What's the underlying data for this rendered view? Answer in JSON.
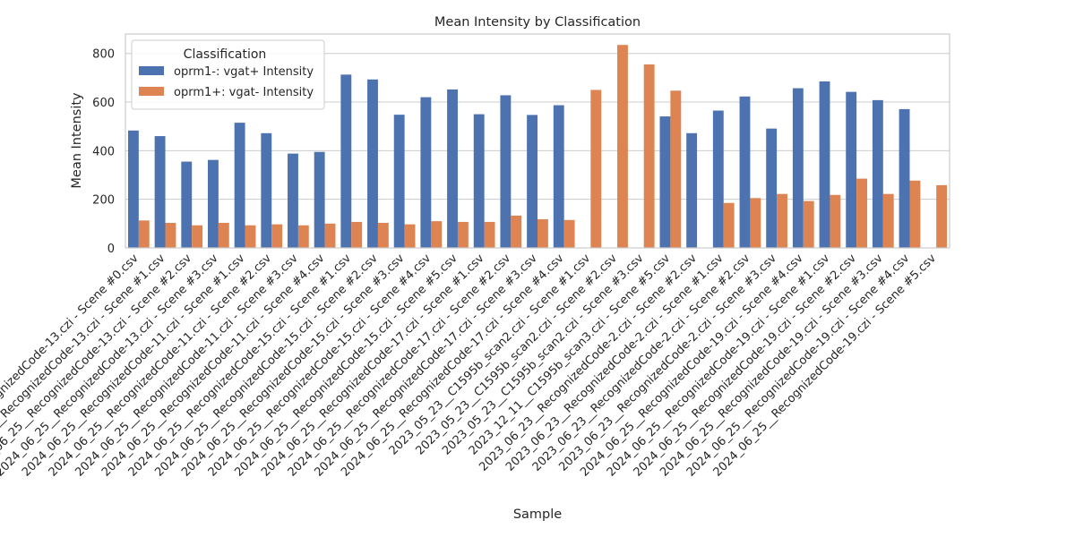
{
  "chart_data": {
    "type": "bar",
    "title": "Mean Intensity by Classification",
    "xlabel": "Sample",
    "ylabel": "Mean Intensity",
    "ylim": [
      0,
      880
    ],
    "yticks": [
      0,
      200,
      400,
      600,
      800
    ],
    "grid": true,
    "legend_title": "Classification",
    "legend_position": "top-left",
    "categories": [
      "2024_06_25__RecognizedCode-13.czi - Scene #0.csv",
      "2024_06_25__RecognizedCode-13.czi - Scene #1.csv",
      "2024_06_25__RecognizedCode-13.czi - Scene #2.csv",
      "2024_06_25__RecognizedCode-13.czi - Scene #3.csv",
      "2024_06_25__RecognizedCode-11.czi - Scene #1.csv",
      "2024_06_25__RecognizedCode-11.czi - Scene #2.csv",
      "2024_06_25__RecognizedCode-11.czi - Scene #3.csv",
      "2024_06_25__RecognizedCode-11.czi - Scene #4.csv",
      "2024_06_25__RecognizedCode-15.czi - Scene #1.csv",
      "2024_06_25__RecognizedCode-15.czi - Scene #2.csv",
      "2024_06_25__RecognizedCode-15.czi - Scene #3.csv",
      "2024_06_25__RecognizedCode-15.czi - Scene #4.csv",
      "2024_06_25__RecognizedCode-15.czi - Scene #5.csv",
      "2024_06_25__RecognizedCode-17.czi - Scene #1.csv",
      "2024_06_25__RecognizedCode-17.czi - Scene #2.csv",
      "2024_06_25__RecognizedCode-17.czi - Scene #3.csv",
      "2024_06_25__RecognizedCode-17.czi - Scene #4.csv",
      "2023_05_23__C1595b_scan2.czi - Scene #1.csv",
      "2023_05_23__C1595b_scan2.czi - Scene #2.csv",
      "2023_05_23__C1595b_scan2.czi - Scene #3.csv",
      "2023_12_11__C1595b_scan3.czi - Scene #5.csv",
      "2023_06_23__RecognizedCode-2.czi - Scene #2.csv",
      "2023_06_23__RecognizedCode-2.czi - Scene #1.csv",
      "2023_06_23__RecognizedCode-2.czi - Scene #2.csv",
      "2023_06_23__RecognizedCode-2.czi - Scene #3.csv",
      "2024_06_25__RecognizedCode-19.czi - Scene #4.csv",
      "2024_06_25__RecognizedCode-19.czi - Scene #1.csv",
      "2024_06_25__RecognizedCode-19.czi - Scene #2.csv",
      "2024_06_25__RecognizedCode-19.czi - Scene #3.csv",
      "2024_06_25__RecognizedCode-19.czi - Scene #4.csv",
      "2024_06_25__RecognizedCode-19.czi - Scene #5.csv"
    ],
    "series": [
      {
        "name": "oprm1-: vgat+ Intensity",
        "color": "#4c72b0",
        "values": [
          483,
          460,
          355,
          362,
          515,
          472,
          388,
          395,
          713,
          693,
          548,
          620,
          652,
          550,
          628,
          547,
          587,
          null,
          null,
          null,
          541,
          472,
          565,
          623,
          491,
          657,
          685,
          642,
          608,
          571,
          null
        ]
      },
      {
        "name": "oprm1+: vgat- Intensity",
        "color": "#dd8452",
        "values": [
          113,
          103,
          93,
          103,
          93,
          97,
          93,
          100,
          107,
          103,
          97,
          110,
          107,
          107,
          133,
          118,
          115,
          650,
          835,
          755,
          647,
          null,
          185,
          205,
          222,
          193,
          218,
          285,
          222,
          277,
          258
        ]
      }
    ]
  }
}
